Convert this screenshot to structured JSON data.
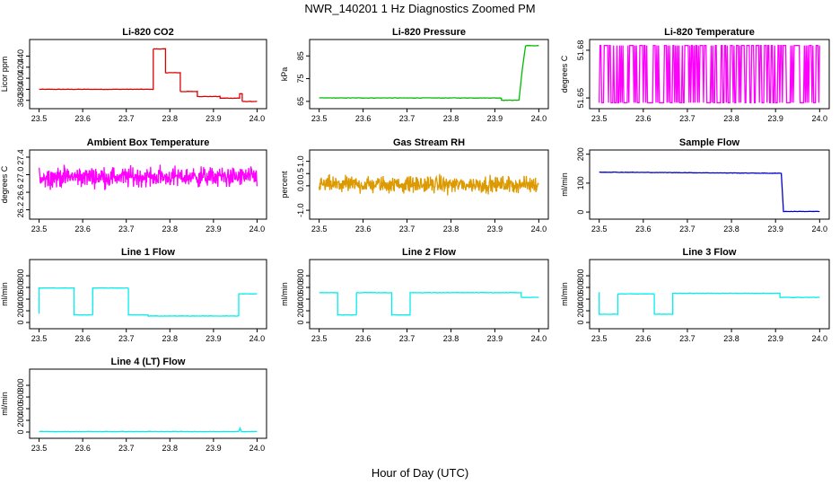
{
  "figure": {
    "title": "NWR_140201  1 Hz Diagnostics Zoomed PM",
    "xlabel": "Hour of Day (UTC)"
  },
  "chart_data": [
    {
      "type": "line",
      "title": "Li-820 CO2",
      "ylabel": "Licor ppm",
      "color": "#dd0000",
      "xlim": [
        23.5,
        24.0
      ],
      "xticks": [
        "23.5",
        "23.6",
        "23.7",
        "23.8",
        "23.9",
        "24.0"
      ],
      "ylim": [
        350,
        465
      ],
      "yticks": [
        "360",
        "380",
        "400",
        "420",
        "440"
      ],
      "series": [
        {
          "x": [
            23.5,
            23.762,
            23.762,
            23.79,
            23.79,
            23.824,
            23.824,
            23.863,
            23.863,
            23.915,
            23.915,
            23.96,
            23.96,
            23.966,
            23.966,
            24.0
          ],
          "y": [
            380,
            380,
            453,
            453,
            410,
            410,
            376,
            376,
            367,
            367,
            364,
            364,
            372,
            372,
            358,
            358
          ]
        }
      ]
    },
    {
      "type": "line",
      "title": "Li-820 Pressure",
      "ylabel": "kPa",
      "color": "#00bb00",
      "xlim": [
        23.5,
        24.0
      ],
      "xticks": [
        "23.5",
        "23.6",
        "23.7",
        "23.8",
        "23.9",
        "24.0"
      ],
      "ylim": [
        63,
        91
      ],
      "yticks": [
        "65",
        "75",
        "85"
      ],
      "series": [
        {
          "x": [
            23.5,
            23.915,
            23.915,
            23.955,
            23.963,
            23.97,
            24.0
          ],
          "y": [
            66.5,
            66.5,
            65.5,
            65.5,
            80,
            89.5,
            89.5
          ]
        }
      ]
    },
    {
      "type": "line",
      "title": "Li-820 Temperature",
      "ylabel": "degrees C",
      "color": "#ff00ff",
      "xlim": [
        23.5,
        24.0
      ],
      "xticks": [
        "23.5",
        "23.6",
        "23.7",
        "23.8",
        "23.9",
        "24.0"
      ],
      "ylim": [
        51.645,
        51.685
      ],
      "yticks": [
        "51.65",
        "51.68"
      ],
      "series": [
        {
          "name": "",
          "range": [
            51.647,
            51.683
          ]
        }
      ]
    },
    {
      "type": "line",
      "title": "Ambient Box Temperature",
      "ylabel": "degrees C",
      "color": "#ff00ff",
      "xlim": [
        23.5,
        24.0
      ],
      "xticks": [
        "23.5",
        "23.6",
        "23.7",
        "23.8",
        "23.9",
        "24.0"
      ],
      "ylim": [
        26.05,
        27.5
      ],
      "yticks": [
        "26.2",
        "26.6",
        "27.0",
        "27.4"
      ],
      "series": [
        {
          "name": "",
          "center": 26.95,
          "spread": 0.3
        }
      ]
    },
    {
      "type": "line",
      "title": "Gas Stream RH",
      "ylabel": "percent",
      "color": "#dd9900",
      "xlim": [
        23.5,
        24.0
      ],
      "xticks": [
        "23.5",
        "23.6",
        "23.7",
        "23.8",
        "23.9",
        "24.0"
      ],
      "ylim": [
        -1.25,
        1.35
      ],
      "yticks": [
        "-1.0",
        "0.0",
        "0.5",
        "1.0"
      ],
      "series": [
        {
          "name": "",
          "center": 0.05,
          "spread": 0.45
        }
      ]
    },
    {
      "type": "line",
      "title": "Sample Flow",
      "ylabel": "ml/min",
      "color": "#0000cc",
      "xlim": [
        23.5,
        24.0
      ],
      "xticks": [
        "23.5",
        "23.6",
        "23.7",
        "23.8",
        "23.9",
        "24.0"
      ],
      "ylim": [
        -15,
        205
      ],
      "yticks": [
        "0",
        "100",
        "200"
      ],
      "series": [
        {
          "x": [
            23.5,
            23.913,
            23.918,
            24.0
          ],
          "y": [
            138,
            134,
            2,
            2
          ]
        }
      ]
    },
    {
      "type": "line",
      "title": "Line 1 Flow",
      "ylabel": "ml/min",
      "color": "#00eeee",
      "xlim": [
        23.5,
        24.0
      ],
      "xticks": [
        "23.5",
        "23.6",
        "23.7",
        "23.8",
        "23.9",
        "24.0"
      ],
      "ylim": [
        -60,
        1030
      ],
      "yticks": [
        "0",
        "200",
        "400",
        "600",
        "800"
      ],
      "series": [
        {
          "x": [
            23.5,
            23.5,
            23.58,
            23.58,
            23.623,
            23.623,
            23.705,
            23.705,
            23.75,
            23.75,
            23.958,
            23.958,
            24.0
          ],
          "y": [
            150,
            590,
            590,
            130,
            130,
            590,
            590,
            130,
            130,
            110,
            110,
            490,
            490
          ]
        }
      ]
    },
    {
      "type": "line",
      "title": "Line 2 Flow",
      "ylabel": "ml/min",
      "color": "#00eeee",
      "xlim": [
        23.5,
        24.0
      ],
      "xticks": [
        "23.5",
        "23.6",
        "23.7",
        "23.8",
        "23.9",
        "24.0"
      ],
      "ylim": [
        -60,
        1030
      ],
      "yticks": [
        "0",
        "200",
        "400",
        "600",
        "800"
      ],
      "series": [
        {
          "x": [
            23.5,
            23.542,
            23.542,
            23.585,
            23.585,
            23.665,
            23.665,
            23.707,
            23.707,
            23.96,
            23.96,
            24.0
          ],
          "y": [
            510,
            510,
            130,
            130,
            510,
            510,
            130,
            130,
            510,
            510,
            430,
            430
          ]
        }
      ]
    },
    {
      "type": "line",
      "title": "Line 3 Flow",
      "ylabel": "ml/min",
      "color": "#00eeee",
      "xlim": [
        23.5,
        24.0
      ],
      "xticks": [
        "23.5",
        "23.6",
        "23.7",
        "23.8",
        "23.9",
        "24.0"
      ],
      "ylim": [
        -60,
        1030
      ],
      "yticks": [
        "0",
        "200",
        "400",
        "600",
        "800"
      ],
      "series": [
        {
          "x": [
            23.5,
            23.5,
            23.542,
            23.542,
            23.625,
            23.625,
            23.667,
            23.667,
            23.91,
            23.91,
            24.0
          ],
          "y": [
            520,
            140,
            140,
            490,
            490,
            140,
            140,
            500,
            500,
            430,
            430
          ]
        }
      ]
    },
    {
      "type": "line",
      "title": "Line 4 (LT) Flow",
      "ylabel": "ml/min",
      "color": "#00eeee",
      "xlim": [
        23.5,
        24.0
      ],
      "xticks": [
        "23.5",
        "23.6",
        "23.7",
        "23.8",
        "23.9",
        "24.0"
      ],
      "ylim": [
        -60,
        1030
      ],
      "yticks": [
        "0",
        "200",
        "400",
        "600",
        "800"
      ],
      "series": [
        {
          "x": [
            23.5,
            23.958,
            23.961,
            23.964,
            24.0
          ],
          "y": [
            8,
            8,
            70,
            8,
            8
          ]
        }
      ]
    }
  ]
}
